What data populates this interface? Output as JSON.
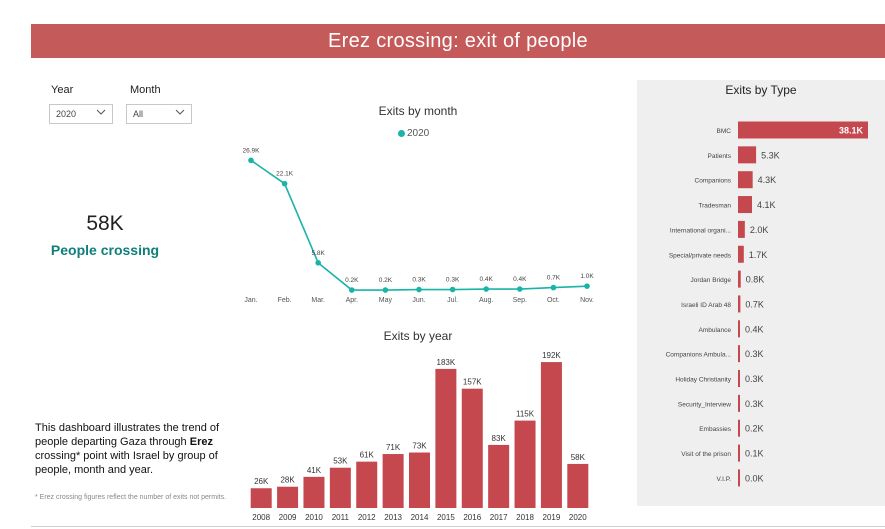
{
  "header": {
    "title": "Erez crossing: exit of people"
  },
  "filters": {
    "year_label": "Year",
    "year_value": "2020",
    "month_label": "Month",
    "month_value": "All"
  },
  "kpi": {
    "value": "58K",
    "label": "People crossing"
  },
  "description": {
    "before": "This dashboard illustrates the trend of people departing Gaza through ",
    "bold": "Erez",
    "after": " crossing* point with Israel by group of people, month and year.",
    "footnote": "* Erez crossing figures reflect the number of exits not permits."
  },
  "colors": {
    "header": "#c55a5a",
    "bar": "#c4484d",
    "line": "#1ab3a8",
    "kpi": "#0f7f7a"
  },
  "chart_data": [
    {
      "type": "line",
      "title": "Exits by month",
      "legend": [
        "2020"
      ],
      "x": [
        "Jan.",
        "Feb.",
        "Mar.",
        "Apr.",
        "May",
        "Jun.",
        "Jul.",
        "Aug.",
        "Sep.",
        "Oct.",
        "Nov."
      ],
      "series": [
        {
          "name": "2020",
          "values": [
            26.9,
            22.1,
            5.8,
            0.2,
            0.2,
            0.3,
            0.3,
            0.4,
            0.4,
            0.7,
            1.0
          ],
          "labels": [
            "26.9K",
            "22.1K",
            "5.8K",
            "0.2K",
            "0.2K",
            "0.3K",
            "0.3K",
            "0.4K",
            "0.4K",
            "0.7K",
            "1.0K"
          ]
        }
      ],
      "ylim": [
        0,
        28
      ]
    },
    {
      "type": "bar",
      "title": "Exits by year",
      "categories": [
        "2008",
        "2009",
        "2010",
        "2011",
        "2012",
        "2013",
        "2014",
        "2015",
        "2016",
        "2017",
        "2018",
        "2019",
        "2020"
      ],
      "values": [
        26,
        28,
        41,
        53,
        61,
        71,
        73,
        183,
        157,
        83,
        115,
        192,
        58
      ],
      "labels": [
        "26K",
        "28K",
        "41K",
        "53K",
        "61K",
        "71K",
        "73K",
        "183K",
        "157K",
        "83K",
        "115K",
        "192K",
        "58K"
      ],
      "ylim": [
        0,
        200
      ]
    },
    {
      "type": "bar",
      "orientation": "horizontal",
      "title": "Exits by Type",
      "categories": [
        "BMC",
        "Patients",
        "Companions",
        "Tradesman",
        "International organi...",
        "Special/private needs",
        "Jordan Bridge",
        "Israeli ID Arab 48",
        "Ambulance",
        "Companions Ambula...",
        "Holiday Christianity",
        "Security_Interview",
        "Embassies",
        "Visit of the prison",
        "V.I.P."
      ],
      "values": [
        38.1,
        5.3,
        4.3,
        4.1,
        2.0,
        1.7,
        0.8,
        0.7,
        0.4,
        0.3,
        0.3,
        0.3,
        0.2,
        0.1,
        0.0
      ],
      "labels": [
        "38.1K",
        "5.3K",
        "4.3K",
        "4.1K",
        "2.0K",
        "1.7K",
        "0.8K",
        "0.7K",
        "0.4K",
        "0.3K",
        "0.3K",
        "0.3K",
        "0.2K",
        "0.1K",
        "0.0K"
      ]
    }
  ]
}
